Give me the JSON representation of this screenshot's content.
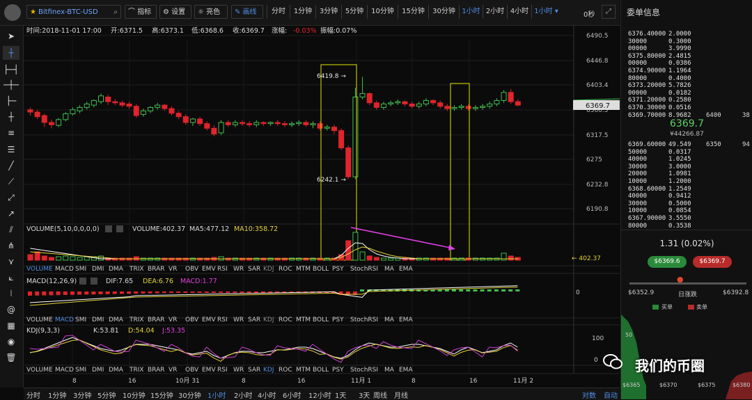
{
  "toolbar": {
    "symbol": "Bitfinex-BTC-USD",
    "indicators_label": "指标",
    "settings_label": "设置",
    "theme_label": "亮色",
    "draw_label": "画线",
    "periods": [
      "分时",
      "1分钟",
      "3分钟",
      "5分钟",
      "10分钟",
      "15分钟",
      "30分钟",
      "1小时",
      "2小时",
      "4小时",
      "1小时 ▾"
    ],
    "active_period_index": 7,
    "countdown": "0秒"
  },
  "info_bar": {
    "time": "时间:2018-11-01 17:00",
    "open": "开:6371.5",
    "high": "高:6373.1",
    "low": "低:6368.6",
    "close": "收:6369.7",
    "change_label": "涨幅:",
    "change_value": "-0.03%",
    "amplitude": "振幅:0.07%"
  },
  "price_axis": {
    "ticks": [
      "6490.5",
      "6446.8",
      "6403.4",
      "6360.5",
      "6317.5",
      "6275",
      "6232.8",
      "6190.8"
    ],
    "current_price": "6369.7"
  },
  "annotations": {
    "high_marker": "6419.8 →",
    "low_marker": "6242.1 →"
  },
  "volume_panel": {
    "title": "VOLUME(5,10,0,0,0,0)",
    "volume": "VOLUME:402.37",
    "ma5": "MA5:477.12",
    "ma10": "MA10:358.72",
    "axis_label": "← 402.37"
  },
  "indicator_tabs": [
    "VOLUME",
    "MACD",
    "SMI",
    "DMI",
    "DMA",
    "TRIX",
    "BRAR",
    "VR",
    "OBV",
    "EMV",
    "RSI",
    "WR",
    "SAR",
    "KDJ",
    "ROC",
    "MTM",
    "BOLL",
    "PSY",
    "StochRSI",
    "MA",
    "EMA"
  ],
  "macd_panel": {
    "title": "MACD(12,26,9)",
    "dif": "DIF:7.65",
    "dea": "DEA:6.76",
    "macd": "MACD:1.77",
    "axis_zero": "0"
  },
  "kdj_panel": {
    "title": "KDJ(9,3,3)",
    "k": "K:53.81",
    "d": "D:54.04",
    "j": "J:53.35",
    "axis_100": "100",
    "axis_0": "0"
  },
  "time_axis": [
    "8",
    "16",
    "10月 31",
    "8",
    "16",
    "11月 1",
    "8",
    "16",
    "11月 2"
  ],
  "bottom_periods": [
    "分时",
    "1分钟",
    "3分钟",
    "5分钟",
    "10分钟",
    "15分钟",
    "30分钟",
    "1小时",
    "2小时",
    "4小时",
    "6小时",
    "12小时",
    "1天",
    "3天",
    "周线",
    "月线"
  ],
  "bottom_active_index": 7,
  "bottom_right": [
    "对数",
    "自动"
  ],
  "order_book": {
    "title": "委单信息",
    "asks": [
      [
        "6376.40000",
        "2.0000",
        "",
        ""
      ],
      [
        "30000",
        "0.3000",
        "",
        ""
      ],
      [
        "00000",
        "3.9990",
        "",
        ""
      ],
      [
        "6375.80000",
        "2.4815",
        "",
        ""
      ],
      [
        "00000",
        "0.0386",
        "",
        ""
      ],
      [
        "6374.90000",
        "1.1964",
        "",
        ""
      ],
      [
        "80000",
        "0.4000",
        "",
        ""
      ],
      [
        "6373.20000",
        "5.7826",
        "",
        ""
      ],
      [
        "00000",
        "0.0182",
        "",
        ""
      ],
      [
        "6371.20000",
        "0.2580",
        "",
        ""
      ],
      [
        "6370.30000",
        "0.0516",
        "",
        ""
      ],
      [
        "6369.70000",
        "8.9682",
        "6400",
        "38"
      ]
    ],
    "last_price": "6369.7",
    "last_cny": "¥44266.87",
    "bids": [
      [
        "6369.60000",
        "49.549",
        "6350",
        "94"
      ],
      [
        "50000",
        "0.0317",
        "",
        ""
      ],
      [
        "40000",
        "1.0245",
        "",
        ""
      ],
      [
        "30000",
        "3.0000",
        "",
        ""
      ],
      [
        "20000",
        "1.0981",
        "",
        ""
      ],
      [
        "10000",
        "1.2000",
        "",
        ""
      ],
      [
        "6368.60000",
        "1.2549",
        "",
        ""
      ],
      [
        "40000",
        "0.9412",
        "",
        ""
      ],
      [
        "30000",
        "0.5000",
        "",
        ""
      ],
      [
        "10000",
        "0.0854",
        "",
        ""
      ],
      [
        "6367.90000",
        "3.5550",
        "",
        ""
      ],
      [
        "80000",
        "0.3538",
        "",
        ""
      ]
    ],
    "change": "1.31 (0.02%)",
    "bid_button": "$6369.6",
    "ask_button": "$6369.7",
    "range_low": "$6352.9",
    "range_label": "日涨跌",
    "range_high": "$6392.8",
    "legend_buy": "买单",
    "legend_sell": "卖单",
    "depth_axis": [
      "$6365",
      "$6370",
      "$6375",
      "$6380"
    ],
    "depth_y": "50"
  },
  "watermark": "我们的币圈",
  "colors": {
    "up": "#3fbf4f",
    "down": "#e0242b",
    "ma5": "#ffffff",
    "ma10": "#e6d23a",
    "highlight": "#e6e600",
    "arrow": "#e040e0",
    "accent": "#4f8fe6"
  }
}
